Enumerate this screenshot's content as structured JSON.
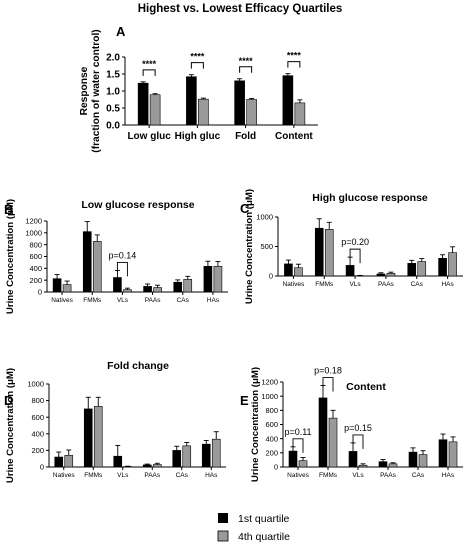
{
  "figure": {
    "legend": [
      {
        "label": "1st quartile",
        "color": "#000000"
      },
      {
        "label": "4th quartile",
        "color": "#9a9a9a"
      }
    ]
  },
  "chart_data": [
    {
      "panel": "A",
      "type": "bar",
      "title": "Highest vs. Lowest Efficacy Quartiles",
      "ylabel": "Response\n(fraction of water control)",
      "xlabel": "",
      "categories": [
        "Low gluc",
        "High gluc",
        "Fold",
        "Content"
      ],
      "ylim": [
        0,
        2.0
      ],
      "yticks": [
        0.0,
        0.5,
        1.0,
        1.5,
        2.0
      ],
      "series": [
        {
          "name": "1st quartile",
          "values": [
            1.23,
            1.42,
            1.3,
            1.45
          ],
          "errors": [
            0.04,
            0.06,
            0.06,
            0.06
          ]
        },
        {
          "name": "4th quartile",
          "values": [
            0.89,
            0.76,
            0.75,
            0.65
          ],
          "errors": [
            0.03,
            0.03,
            0.03,
            0.09
          ]
        }
      ],
      "annotations": [
        {
          "category": "Low gluc",
          "text": "****"
        },
        {
          "category": "High gluc",
          "text": "****"
        },
        {
          "category": "Fold",
          "text": "****"
        },
        {
          "category": "Content",
          "text": "****"
        }
      ],
      "grid": false
    },
    {
      "panel": "B",
      "type": "bar",
      "title": "Low glucose response",
      "ylabel": "Urine Concentration (μM)",
      "xlabel": "",
      "categories": [
        "Natives",
        "FMMs",
        "VLs",
        "PAAs",
        "CAs",
        "HAs"
      ],
      "ylim": [
        0,
        1200
      ],
      "yticks": [
        0,
        200,
        400,
        600,
        800,
        1000,
        1200
      ],
      "series": [
        {
          "name": "1st quartile",
          "values": [
            225,
            1020,
            245,
            95,
            165,
            435
          ],
          "errors": [
            70,
            170,
            120,
            40,
            40,
            85
          ]
        },
        {
          "name": "4th quartile",
          "values": [
            125,
            855,
            40,
            75,
            215,
            435
          ],
          "errors": [
            60,
            110,
            25,
            40,
            50,
            80
          ]
        }
      ],
      "annotations": [
        {
          "category": "VLs",
          "text": "p=0.14"
        }
      ],
      "grid": false
    },
    {
      "panel": "C",
      "type": "bar",
      "title": "High glucose response",
      "ylabel": "Urine Concentration (μM)",
      "xlabel": "",
      "categories": [
        "Natives",
        "FMMs",
        "VLs",
        "PAAs",
        "CAs",
        "HAs"
      ],
      "ylim": [
        0,
        1000
      ],
      "yticks": [
        0,
        500,
        1000
      ],
      "series": [
        {
          "name": "1st quartile",
          "values": [
            205,
            810,
            180,
            35,
            215,
            300
          ],
          "errors": [
            65,
            160,
            140,
            20,
            50,
            60
          ]
        },
        {
          "name": "4th quartile",
          "values": [
            140,
            790,
            5,
            45,
            245,
            395
          ],
          "errors": [
            60,
            120,
            5,
            20,
            50,
            100
          ]
        }
      ],
      "annotations": [
        {
          "category": "VLs",
          "text": "p=0.20"
        }
      ],
      "grid": false
    },
    {
      "panel": "D",
      "type": "bar",
      "title": "Fold change",
      "ylabel": "Urine Concentration (μM)",
      "xlabel": "",
      "categories": [
        "Natives",
        "FMMs",
        "VLs",
        "PAAs",
        "CAs",
        "HAs"
      ],
      "ylim": [
        0,
        1000
      ],
      "yticks": [
        0,
        200,
        400,
        600,
        800,
        1000
      ],
      "series": [
        {
          "name": "1st quartile",
          "values": [
            120,
            700,
            130,
            25,
            200,
            275
          ],
          "errors": [
            60,
            140,
            130,
            10,
            50,
            45
          ]
        },
        {
          "name": "4th quartile",
          "values": [
            140,
            730,
            5,
            30,
            255,
            335
          ],
          "errors": [
            65,
            110,
            5,
            15,
            40,
            90
          ]
        }
      ],
      "annotations": [],
      "grid": false
    },
    {
      "panel": "E",
      "type": "bar",
      "title": "Content",
      "ylabel": "Urine Concentration (μM)",
      "xlabel": "",
      "categories": [
        "Natives",
        "FMMs",
        "VLs",
        "PAAs",
        "CAs",
        "HAs"
      ],
      "ylim": [
        0,
        1200
      ],
      "yticks": [
        0,
        200,
        400,
        600,
        800,
        1000,
        1200
      ],
      "series": [
        {
          "name": "1st quartile",
          "values": [
            225,
            975,
            220,
            75,
            210,
            385
          ],
          "errors": [
            60,
            175,
            120,
            30,
            60,
            80
          ]
        },
        {
          "name": "4th quartile",
          "values": [
            90,
            690,
            25,
            45,
            175,
            355
          ],
          "errors": [
            45,
            110,
            20,
            15,
            55,
            70
          ]
        }
      ],
      "annotations": [
        {
          "category": "Natives",
          "text": "p=0.11"
        },
        {
          "category": "FMMs",
          "text": "p=0.18"
        },
        {
          "category": "VLs",
          "text": "p=0.15"
        }
      ],
      "grid": false
    }
  ]
}
